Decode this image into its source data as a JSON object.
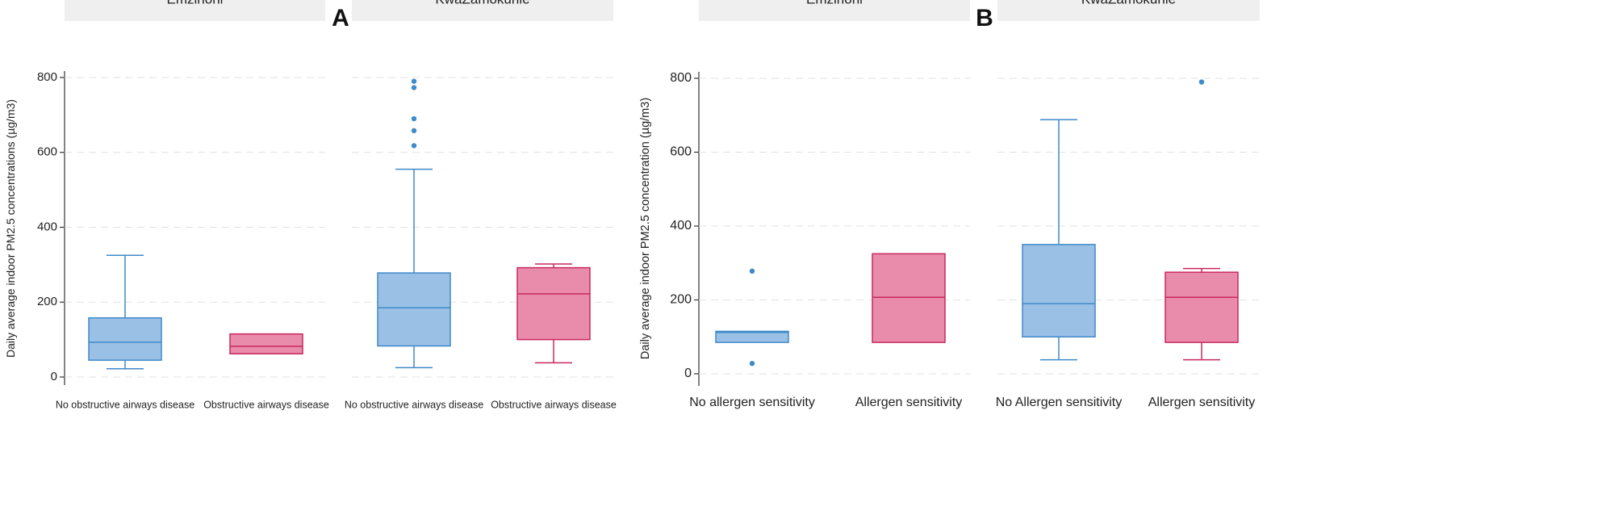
{
  "chart_data": [
    {
      "panel_label": "A",
      "type": "boxplot",
      "ylabel": "Daily average indoor PM2.5 concentrations (µg/m3)",
      "ylim": [
        0,
        800
      ],
      "yticks": [
        "0",
        "200",
        "400",
        "600",
        "800"
      ],
      "facets": [
        {
          "title": "Emzinoni",
          "boxes": [
            {
              "category": "No obstructive airways disease",
              "group": "no",
              "whisker_low": 22,
              "q1": 45,
              "median": 93,
              "q3": 158,
              "whisker_high": 325,
              "outliers": []
            },
            {
              "category": "Obstructive airways disease",
              "group": "yes",
              "whisker_low": 62,
              "q1": 62,
              "median": 82,
              "q3": 115,
              "whisker_high": 115,
              "outliers": []
            }
          ]
        },
        {
          "title": "KwaZamokuhle",
          "boxes": [
            {
              "category": "No obstructive airways disease",
              "group": "no",
              "whisker_low": 25,
              "q1": 83,
              "median": 185,
              "q3": 278,
              "whisker_high": 555,
              "outliers": [
                618,
                658,
                690,
                773,
                790
              ]
            },
            {
              "category": "Obstructive airways disease",
              "group": "yes",
              "whisker_low": 38,
              "q1": 100,
              "median": 222,
              "q3": 292,
              "whisker_high": 302,
              "outliers": []
            }
          ]
        }
      ]
    },
    {
      "panel_label": "B",
      "type": "boxplot",
      "ylabel": "Daily average indoor PM2.5 concentration (µg/m3)",
      "ylim": [
        0,
        800
      ],
      "yticks": [
        "0",
        "200",
        "400",
        "600",
        "800"
      ],
      "facets": [
        {
          "title": "Emzinoni",
          "boxes": [
            {
              "category": "No allergen sensitivity",
              "group": "no",
              "whisker_low": 85,
              "q1": 85,
              "median": 112,
              "q3": 115,
              "whisker_high": 115,
              "outliers": [
                28,
                278
              ]
            },
            {
              "category": "Allergen sensitivity",
              "group": "yes",
              "whisker_low": 85,
              "q1": 85,
              "median": 207,
              "q3": 325,
              "whisker_high": 325,
              "outliers": []
            }
          ]
        },
        {
          "title": "KwaZamokuhle",
          "boxes": [
            {
              "category": "No Allergen sensitivity",
              "group": "no",
              "whisker_low": 38,
              "q1": 100,
              "median": 190,
              "q3": 350,
              "whisker_high": 688,
              "outliers": []
            },
            {
              "category": "Allergen sensitivity",
              "group": "yes",
              "whisker_low": 38,
              "q1": 85,
              "median": 207,
              "q3": 275,
              "whisker_high": 285,
              "outliers": [
                790
              ]
            }
          ]
        }
      ]
    }
  ],
  "colors": {
    "no_fill": "#9bc0e6",
    "no_line": "#3f8ac8",
    "yes_fill": "#e98bab",
    "yes_line": "#c8285f",
    "strip_bg": "#efefef",
    "grid": "#e2e2e2",
    "axis": "#333333"
  }
}
